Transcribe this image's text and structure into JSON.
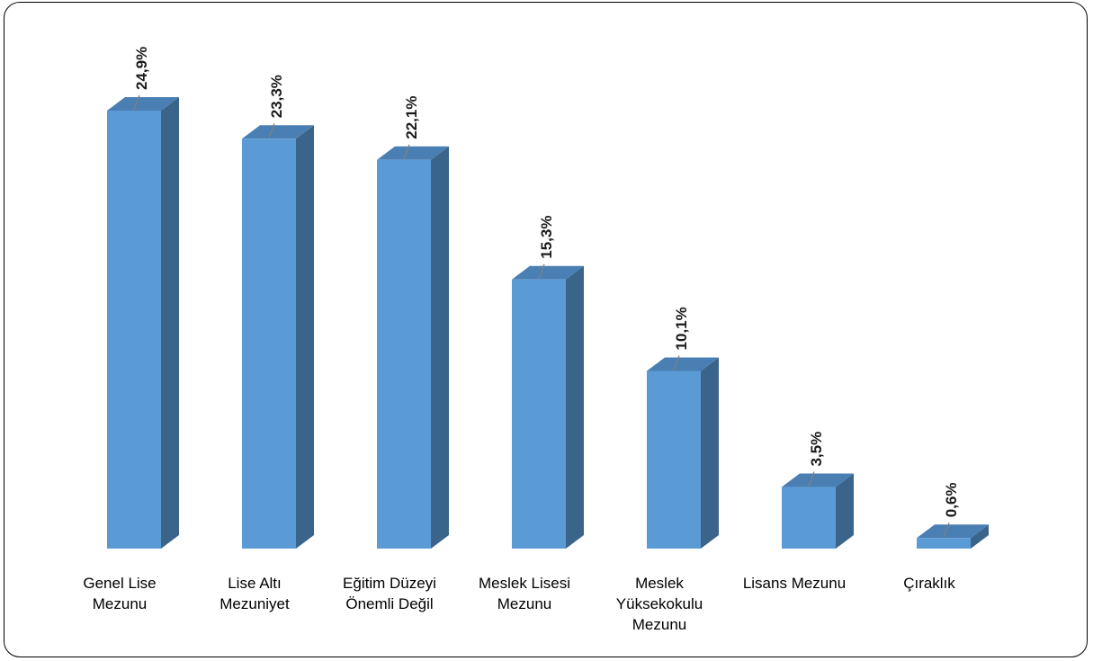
{
  "chart_data": {
    "type": "bar",
    "categories": [
      "Genel Lise\nMezunu",
      "Lise Altı\nMezuniyet",
      "Eğitim Düzeyi\nÖnemli Değil",
      "Meslek Lisesi\nMezunu",
      "Meslek\nYüksekokulu\nMezunu",
      "Lisans Mezunu",
      "Çıraklık"
    ],
    "values": [
      24.9,
      23.3,
      22.1,
      15.3,
      10.1,
      3.5,
      0.6
    ],
    "data_labels": [
      "24,9%",
      "23,3%",
      "22,1%",
      "15,3%",
      "10,1%",
      "3,5%",
      "0,6%"
    ],
    "unit": "%",
    "title": "",
    "xlabel": "",
    "ylabel": "",
    "ylim": [
      0,
      24.9
    ],
    "grid": false,
    "legend": "none",
    "style": "3d-column",
    "colors": {
      "front": "#5b9bd5",
      "top": "#4a7fb3",
      "side": "#3a6489",
      "leader": "#808080"
    }
  }
}
